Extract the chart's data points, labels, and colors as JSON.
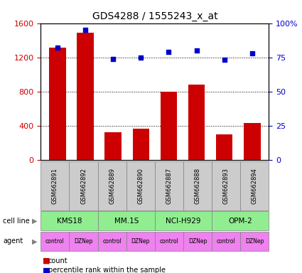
{
  "title": "GDS4288 / 1555243_x_at",
  "samples": [
    "GSM662891",
    "GSM662892",
    "GSM662889",
    "GSM662890",
    "GSM662887",
    "GSM662888",
    "GSM662893",
    "GSM662894"
  ],
  "counts": [
    1310,
    1490,
    320,
    360,
    800,
    880,
    300,
    430
  ],
  "percentile_ranks": [
    82,
    95,
    74,
    75,
    79,
    80,
    73,
    78
  ],
  "cell_lines": [
    {
      "label": "KMS18",
      "start": 0,
      "end": 2
    },
    {
      "label": "MM.1S",
      "start": 2,
      "end": 4
    },
    {
      "label": "NCI-H929",
      "start": 4,
      "end": 6
    },
    {
      "label": "OPM-2",
      "start": 6,
      "end": 8
    }
  ],
  "agents": [
    "control",
    "DZNep",
    "control",
    "DZNep",
    "control",
    "DZNep",
    "control",
    "DZNep"
  ],
  "bar_color": "#cc0000",
  "dot_color": "#0000cc",
  "cell_line_color": "#90ee90",
  "agent_color": "#ee82ee",
  "sample_bg_color": "#cccccc",
  "ylim_left": [
    0,
    1600
  ],
  "ylim_right": [
    0,
    100
  ],
  "yticks_left": [
    0,
    400,
    800,
    1200,
    1600
  ],
  "yticks_right": [
    0,
    25,
    50,
    75,
    100
  ],
  "ylabel_left_color": "#cc0000",
  "ylabel_right_color": "#0000cc"
}
